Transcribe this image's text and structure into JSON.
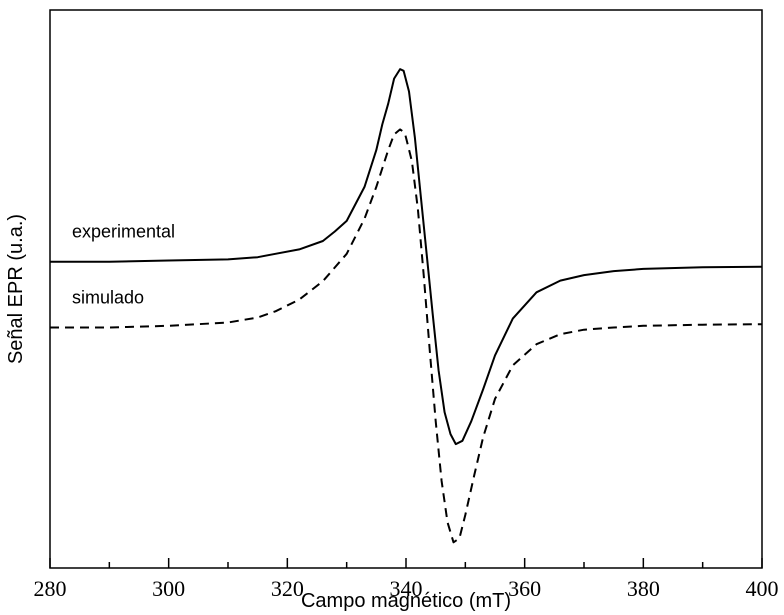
{
  "chart_data": {
    "type": "line",
    "title": "",
    "xlabel": "Campo magnético (mT)",
    "ylabel": "Señal EPR (u.a.)",
    "xlim": [
      280,
      400
    ],
    "ylim": [
      0,
      1
    ],
    "x_ticks": [
      280,
      300,
      320,
      340,
      360,
      380,
      400
    ],
    "x_minor_step": 10,
    "y_tick_labels": false,
    "grid": false,
    "legend": "none",
    "annotations": [
      {
        "text": "experimental",
        "series": "experimental"
      },
      {
        "text": "simulado",
        "series": "simulado"
      }
    ],
    "series": [
      {
        "name": "experimental",
        "style": "solid",
        "color": "#000000",
        "points": [
          [
            280,
            0.549
          ],
          [
            290,
            0.549
          ],
          [
            300,
            0.551
          ],
          [
            310,
            0.553
          ],
          [
            315,
            0.557
          ],
          [
            318,
            0.563
          ],
          [
            322,
            0.571
          ],
          [
            326,
            0.586
          ],
          [
            328,
            0.603
          ],
          [
            330,
            0.622
          ],
          [
            333,
            0.683
          ],
          [
            335,
            0.749
          ],
          [
            336,
            0.795
          ],
          [
            337,
            0.832
          ],
          [
            338,
            0.877
          ],
          [
            339,
            0.894
          ],
          [
            339.6,
            0.891
          ],
          [
            340.5,
            0.854
          ],
          [
            341.5,
            0.771
          ],
          [
            342.5,
            0.666
          ],
          [
            343.5,
            0.56
          ],
          [
            344.5,
            0.455
          ],
          [
            345.5,
            0.354
          ],
          [
            346.5,
            0.279
          ],
          [
            347.5,
            0.24
          ],
          [
            348.4,
            0.222
          ],
          [
            349.5,
            0.228
          ],
          [
            351,
            0.263
          ],
          [
            353,
            0.32
          ],
          [
            355,
            0.381
          ],
          [
            358,
            0.447
          ],
          [
            362,
            0.494
          ],
          [
            366,
            0.515
          ],
          [
            370,
            0.525
          ],
          [
            375,
            0.532
          ],
          [
            380,
            0.536
          ],
          [
            390,
            0.539
          ],
          [
            400,
            0.54
          ]
        ]
      },
      {
        "name": "simulado",
        "style": "dashed",
        "color": "#000000",
        "points": [
          [
            280,
            0.431
          ],
          [
            290,
            0.431
          ],
          [
            300,
            0.434
          ],
          [
            310,
            0.44
          ],
          [
            315,
            0.449
          ],
          [
            318,
            0.46
          ],
          [
            322,
            0.481
          ],
          [
            326,
            0.514
          ],
          [
            330,
            0.563
          ],
          [
            333,
            0.626
          ],
          [
            335,
            0.683
          ],
          [
            337,
            0.749
          ],
          [
            338,
            0.777
          ],
          [
            339,
            0.786
          ],
          [
            339.8,
            0.78
          ],
          [
            341,
            0.729
          ],
          [
            342,
            0.643
          ],
          [
            343,
            0.523
          ],
          [
            344,
            0.391
          ],
          [
            345,
            0.263
          ],
          [
            346,
            0.156
          ],
          [
            347,
            0.082
          ],
          [
            348,
            0.046
          ],
          [
            349,
            0.053
          ],
          [
            350,
            0.095
          ],
          [
            351.5,
            0.166
          ],
          [
            353,
            0.234
          ],
          [
            355,
            0.303
          ],
          [
            358,
            0.363
          ],
          [
            362,
            0.401
          ],
          [
            366,
            0.419
          ],
          [
            370,
            0.427
          ],
          [
            375,
            0.431
          ],
          [
            380,
            0.434
          ],
          [
            390,
            0.436
          ],
          [
            400,
            0.437
          ]
        ]
      }
    ]
  }
}
